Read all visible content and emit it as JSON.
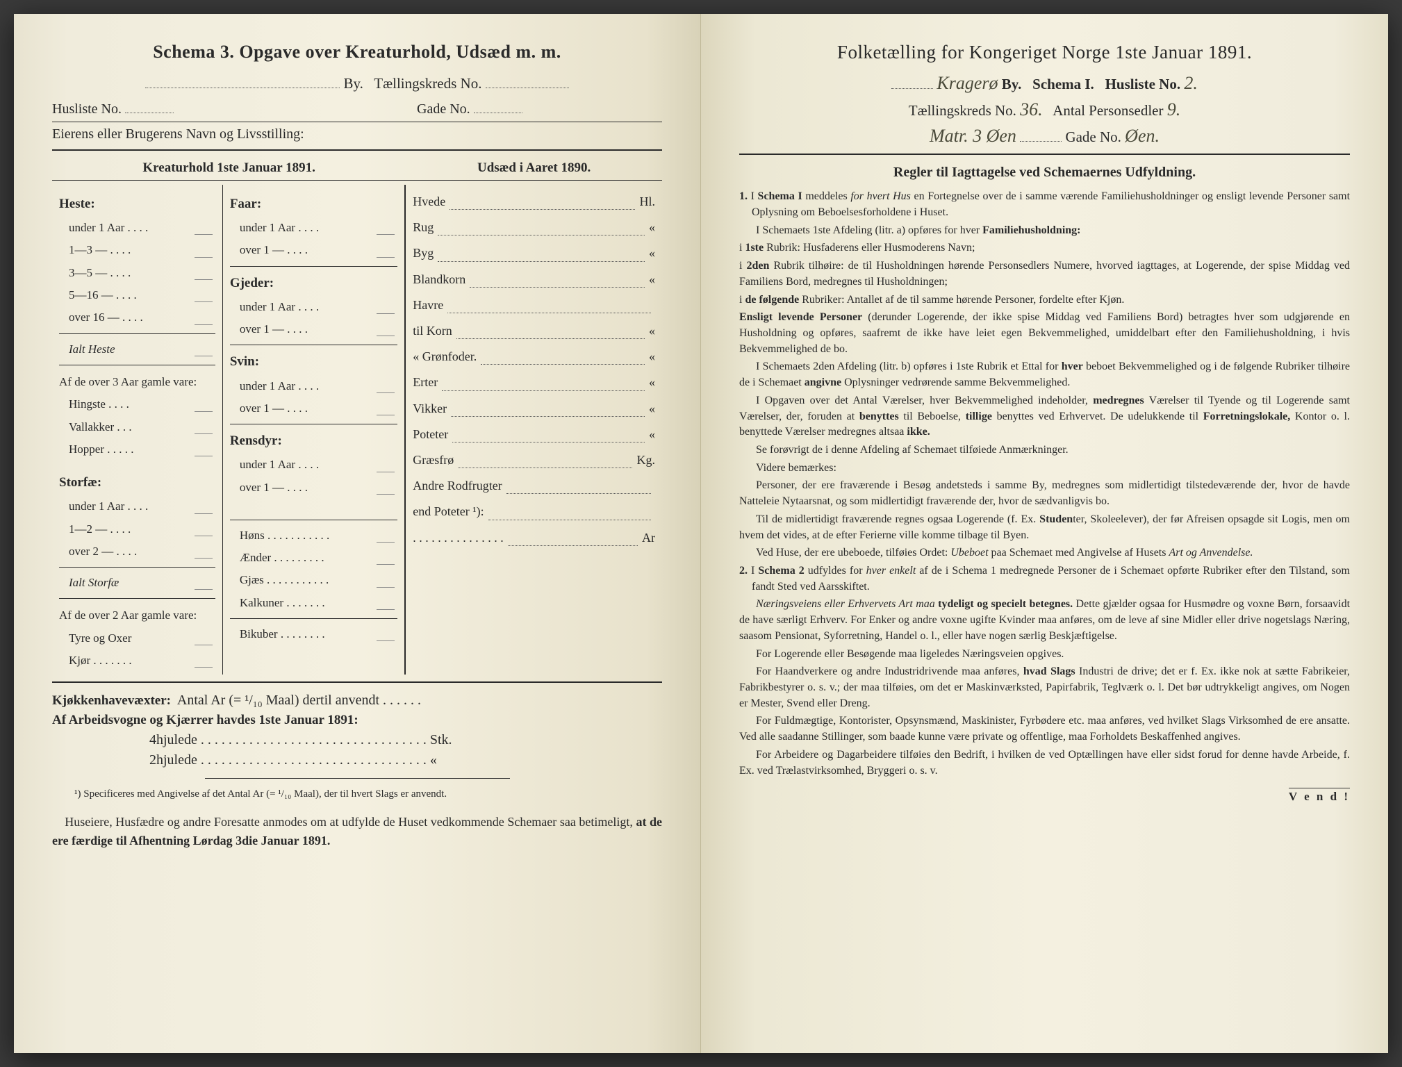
{
  "left": {
    "header": "Schema 3.  Opgave over Kreaturhold, Udsæd m. m.",
    "by_label": "By.",
    "tk_label": "Tællingskreds No.",
    "husliste_label": "Husliste No.",
    "gade_label": "Gade No.",
    "owner_label": "Eierens eller Brugerens Navn og Livsstilling:",
    "col1_title": "Kreaturhold 1ste Januar 1891.",
    "col3_title": "Udsæd i Aaret 1890.",
    "heste": {
      "title": "Heste:",
      "rows": [
        "under 1 Aar . . . .",
        "1—3  —  . . . .",
        "3—5  —  . . . .",
        "5—16 —  . . . .",
        "over 16 —  . . . ."
      ],
      "total": "Ialt Heste",
      "sub_title": "Af de over 3 Aar gamle vare:",
      "sub_rows": [
        "Hingste . . . .",
        "Vallakker . . .",
        "Hopper . . . . ."
      ]
    },
    "storfae": {
      "title": "Storfæ:",
      "rows": [
        "under 1 Aar . . . .",
        "1—2  —  . . . .",
        "over 2  —  . . . ."
      ],
      "total": "Ialt Storfæ",
      "sub_title": "Af de over 2 Aar gamle vare:",
      "sub_rows": [
        "Tyre og Oxer",
        "Kjør . . . . . . ."
      ]
    },
    "animals2": [
      {
        "title": "Faar:",
        "rows": [
          "under 1 Aar . . . .",
          "over 1  —  . . . ."
        ]
      },
      {
        "title": "Gjeder:",
        "rows": [
          "under 1 Aar . . . .",
          "over 1  —  . . . ."
        ]
      },
      {
        "title": "Svin:",
        "rows": [
          "under 1 Aar . . . .",
          "over 1  —  . . . ."
        ]
      },
      {
        "title": "Rensdyr:",
        "rows": [
          "under 1 Aar . . . .",
          "over 1  —  . . . ."
        ]
      }
    ],
    "poultry": [
      "Høns . . . . . . . . . . .",
      "Ænder . . . . . . . . .",
      "Gjæs . . . . . . . . . . .",
      "Kalkuner . . . . . . .",
      "Bikuber . . . . . . . ."
    ],
    "seeds": [
      {
        "l": "Hvede",
        "u": "Hl."
      },
      {
        "l": "Rug",
        "u": "«"
      },
      {
        "l": "Byg",
        "u": "«"
      },
      {
        "l": "Blandkorn",
        "u": "«"
      },
      {
        "l": "Havre",
        "u": ""
      },
      {
        "l": "   til Korn",
        "u": "«"
      },
      {
        "l": "   «  Grønfoder.",
        "u": "«"
      },
      {
        "l": "Erter",
        "u": "«"
      },
      {
        "l": "Vikker",
        "u": "«"
      },
      {
        "l": "Poteter",
        "u": "«"
      },
      {
        "l": "Græsfrø",
        "u": "Kg."
      },
      {
        "l": "Andre Rodfrugter",
        "u": ""
      },
      {
        "l": "   end Poteter ¹):",
        "u": ""
      },
      {
        "l": ". . . . . . . . . . . . . . .",
        "u": "Ar"
      }
    ],
    "kjokken": "Kjøkkenhavevæxter:  Antal Ar (= ¹/₁₀ Maal) dertil anvendt . . . . . .",
    "arbeids": "Af Arbeidsvogne og Kjærrer havdes 1ste Januar 1891:",
    "fourwheel": "4hjulede . . . . . . . . . . . . . . . . . . . . . . . . . . . . . . . . . Stk.",
    "twowheel": "2hjulede . . . . . . . . . . . . . . . . . . . . . . . . . . . . . . . . .   «",
    "footnote": "¹) Specificeres med Angivelse af det Antal Ar (= ¹/₁₀ Maal), der til hvert Slags er anvendt.",
    "bottom": "Huseiere, Husfædre og andre Foresatte anmodes om at udfylde de Huset vedkommende Schemaer saa betimeligt, at de ere færdige til Afhentning Lørdag 3die Januar 1891."
  },
  "right": {
    "title": "Folketælling for Kongeriget Norge 1ste Januar 1891.",
    "city_hand": "Kragerø",
    "by": "By.",
    "schema": "Schema I.",
    "husliste": "Husliste No.",
    "husliste_val": "2.",
    "tk": "Tællingskreds No.",
    "tk_val": "36.",
    "antal": "Antal Personsedler",
    "antal_val": "9.",
    "matr_hand": "Matr. 3  Øen",
    "gade": "Gade No.",
    "gade_val": "Øen.",
    "rules_title": "Regler til Iagttagelse ved Schemaernes Udfyldning.",
    "paragraphs": [
      "1. I Schema I meddeles for hvert Hus en Fortegnelse over de i samme værende Familiehusholdninger og ensligt levende Personer samt Oplysning om Beboelsesforholdene i Huset.",
      "I Schemaets 1ste Afdeling (litr. a) opføres for hver Familiehusholdning:",
      "i 1ste Rubrik: Husfaderens eller Husmoderens Navn;",
      "i 2den Rubrik tilhøire: de til Husholdningen hørende Personsedlers Numere, hvorved iagttages, at Logerende, der spise Middag ved Familiens Bord, medregnes til Husholdningen;",
      "i de følgende Rubriker: Antallet af de til samme hørende Personer, fordelte efter Kjøn.",
      "Ensligt levende Personer (derunder Logerende, der ikke spise Middag ved Familiens Bord) betragtes hver som udgjørende en Husholdning og opføres, saafremt de ikke have leiet egen Bekvemmelighed, umiddelbart efter den Familiehusholdning, i hvis Bekvemmelighed de bo.",
      "I Schemaets 2den Afdeling (litr. b) opføres i 1ste Rubrik et Ettal for hver beboet Bekvemmelighed og i de følgende Rubriker tilhøire de i Schemaet angivne Oplysninger vedrørende samme Bekvemmelighed.",
      "I Opgaven over det Antal Værelser, hver Bekvemmelighed indeholder, medregnes Værelser til Tyende og til Logerende samt Værelser, der, foruden at benyttes til Beboelse, tillige benyttes ved Erhvervet. De udelukkende til Forretningslokale, Kontor o. l. benyttede Værelser medregnes altsaa ikke.",
      "Se forøvrigt de i denne Afdeling af Schemaet tilføiede Anmærkninger.",
      "Videre bemærkes:",
      "Personer, der ere fraværende i Besøg andetsteds i samme By, medregnes som midlertidigt tilstedeværende der, hvor de havde Natteleie Nytaarsnat, og som midlertidigt fraværende der, hvor de sædvanligvis bo.",
      "Til de midlertidigt fraværende regnes ogsaa Logerende (f. Ex. Studenter, Skoleelever), der før Afreisen opsagde sit Logis, men om hvem det vides, at de efter Ferierne ville komme tilbage til Byen.",
      "Ved Huse, der ere ubeboede, tilføies Ordet: Ubeboet paa Schemaet med Angivelse af Husets Art og Anvendelse.",
      "2. I Schema 2 udfyldes for hver enkelt af de i Schema 1 medregnede Personer de i Schemaet opførte Rubriker efter den Tilstand, som fandt Sted ved Aarsskiftet.",
      "Næringsveiens eller Erhvervets Art maa tydeligt og specielt betegnes. Dette gjælder ogsaa for Husmødre og voxne Børn, forsaavidt de have særligt Erhverv. For Enker og andre voxne ugifte Kvinder maa anføres, om de leve af sine Midler eller drive nogetslags Næring, saasom Pensionat, Syforretning, Handel o. l., eller have nogen særlig Beskjæftigelse.",
      "For Logerende eller Besøgende maa ligeledes Næringsveien opgives.",
      "For Haandverkere og andre Industridrivende maa anføres, hvad Slags Industri de drive; det er f. Ex. ikke nok at sætte Fabrikeier, Fabrikbestyrer o. s. v.; der maa tilføies, om det er Maskinværksted, Papirfabrik, Teglværk o. l.  Det bør udtrykkeligt angives, om Nogen er Mester, Svend eller Dreng.",
      "For Fuldmægtige, Kontorister, Opsynsmænd, Maskinister, Fyrbødere etc. maa anføres, ved hvilket Slags Virksomhed de ere ansatte. Ved alle saadanne Stillinger, som baade kunne være private og offentlige, maa Forholdets Beskaffenhed angives.",
      "For Arbeidere og Dagarbeidere tilføies den Bedrift, i hvilken de ved Optællingen have eller sidst forud for denne havde Arbeide, f. Ex. ved Trælastvirksomhed, Bryggeri o. s. v."
    ],
    "vend": "V e n d !"
  }
}
